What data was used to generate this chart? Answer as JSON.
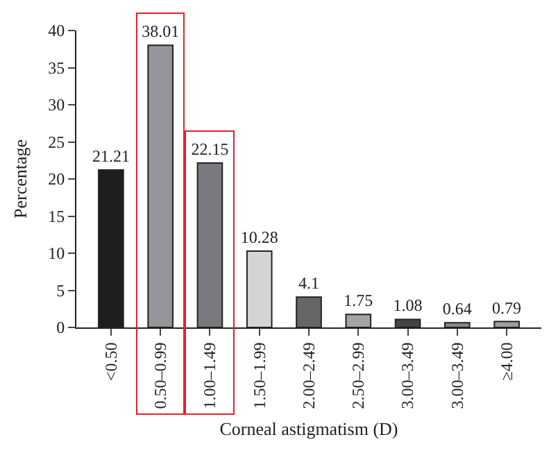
{
  "chart_data": {
    "type": "bar",
    "xlabel": "Corneal astigmatism (D)",
    "ylabel": "Percentage",
    "categories": [
      "<0.50",
      "0.50–0.99",
      "1.00–1.49",
      "1.50–1.99",
      "2.00–2.49",
      "2.50–2.99",
      "3.00–3.49",
      "3.00–3.49",
      "≥4.00"
    ],
    "values": [
      21.21,
      38.01,
      22.15,
      10.28,
      4.1,
      1.75,
      1.08,
      0.64,
      0.79
    ],
    "colors": [
      "#1e1e1e",
      "#96969a",
      "#7a7a7e",
      "#d4d4d6",
      "#666668",
      "#a4a4a8",
      "#444446",
      "#88888a",
      "#a0a0a2"
    ],
    "value_labels": [
      "21.21",
      "38.01",
      "22.15",
      "10.28",
      "4.1",
      "1.75",
      "1.08",
      "0.64",
      "0.79"
    ],
    "ylim": [
      0,
      40
    ],
    "yticks": [
      0,
      5,
      10,
      15,
      20,
      25,
      30,
      35,
      40
    ],
    "grid": false,
    "legend": false
  }
}
